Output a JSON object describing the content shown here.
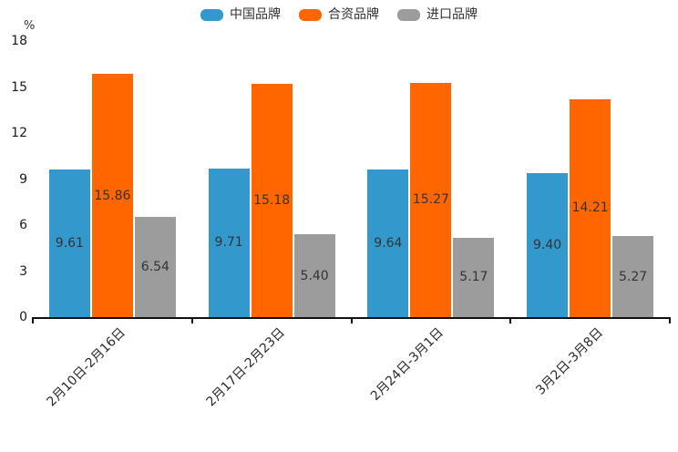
{
  "chart_data": {
    "type": "bar",
    "title": "",
    "unit_label": "%",
    "categories": [
      "2月10日-2月16日",
      "2月17日-2月23日",
      "2月24日-3月1日",
      "3月2日-3月8日"
    ],
    "series": [
      {
        "name": "中国品牌",
        "color": "#3398CC",
        "values": [
          9.61,
          9.71,
          9.64,
          9.4
        ]
      },
      {
        "name": "合资品牌",
        "color": "#FF6600",
        "values": [
          15.86,
          15.18,
          15.27,
          14.21
        ]
      },
      {
        "name": "进口品牌",
        "color": "#9C9C9C",
        "values": [
          6.54,
          5.4,
          5.17,
          5.27
        ]
      }
    ],
    "ylim": [
      0,
      18
    ],
    "yticks": [
      0,
      3,
      6,
      9,
      12,
      15,
      18
    ],
    "legend_position": "top",
    "grid": false,
    "value_label_decimals": 2,
    "colors": {
      "axis": "#111111",
      "tick_text": "#1a1a1a",
      "value_text": "#343434",
      "legend_text": "#333333"
    }
  }
}
